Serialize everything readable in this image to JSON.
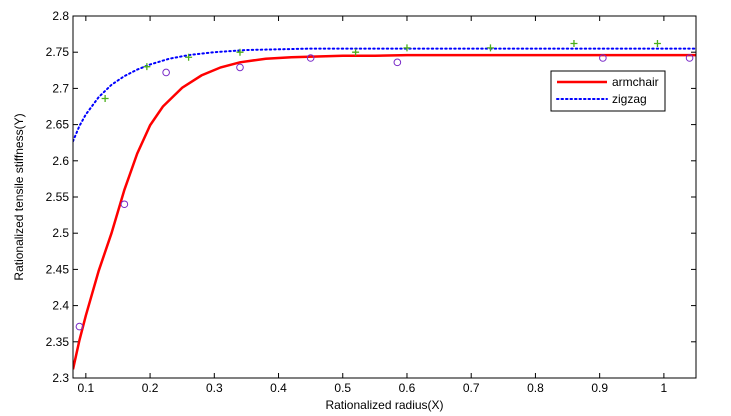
{
  "chart_data": {
    "type": "line",
    "title": "",
    "xlabel": "Rationalized radius(X)",
    "ylabel": "Rationalized tensile stiffness(Y)",
    "xlim": [
      0.08,
      1.05
    ],
    "ylim": [
      2.3,
      2.8
    ],
    "xticks": [
      0.1,
      0.2,
      0.3,
      0.4,
      0.5,
      0.6,
      0.7,
      0.8,
      0.9,
      1.0
    ],
    "xtick_labels": [
      "0.1",
      "0.2",
      "0.3",
      "0.4",
      "0.5",
      "0.6",
      "0.7",
      "0.8",
      "0.9",
      "1"
    ],
    "yticks": [
      2.3,
      2.35,
      2.4,
      2.45,
      2.5,
      2.55,
      2.6,
      2.65,
      2.7,
      2.75,
      2.8
    ],
    "ytick_labels": [
      "2.3",
      "2.35",
      "2.4",
      "2.45",
      "2.5",
      "2.55",
      "2.6",
      "2.65",
      "2.7",
      "2.75",
      "2.8"
    ],
    "grid": false,
    "legend_position": "top-right",
    "series": [
      {
        "name": "armchair",
        "style": "solid",
        "color": "#ff0000",
        "x": [
          0.08,
          0.09,
          0.1,
          0.12,
          0.14,
          0.16,
          0.18,
          0.2,
          0.22,
          0.25,
          0.28,
          0.31,
          0.34,
          0.38,
          0.42,
          0.46,
          0.5,
          0.55,
          0.6,
          0.7,
          0.8,
          0.9,
          1.0,
          1.05
        ],
        "y": [
          2.312,
          2.352,
          2.386,
          2.448,
          2.5,
          2.56,
          2.61,
          2.649,
          2.675,
          2.701,
          2.718,
          2.729,
          2.736,
          2.741,
          2.743,
          2.744,
          2.745,
          2.745,
          2.746,
          2.746,
          2.746,
          2.746,
          2.746,
          2.746
        ]
      },
      {
        "name": "zigzag",
        "style": "dotted",
        "color": "#0000ff",
        "x": [
          0.08,
          0.09,
          0.1,
          0.12,
          0.14,
          0.16,
          0.18,
          0.2,
          0.23,
          0.26,
          0.3,
          0.35,
          0.4,
          0.45,
          0.5,
          0.6,
          0.7,
          0.8,
          0.9,
          1.0,
          1.05
        ],
        "y": [
          2.627,
          2.648,
          2.664,
          2.688,
          2.705,
          2.717,
          2.726,
          2.733,
          2.741,
          2.746,
          2.75,
          2.753,
          2.754,
          2.755,
          2.755,
          2.755,
          2.755,
          2.755,
          2.755,
          2.755,
          2.755
        ]
      }
    ],
    "markers": [
      {
        "shape": "circle",
        "color": "#7a2cc8",
        "x": [
          0.09,
          0.16,
          0.225,
          0.34,
          0.45,
          0.585,
          0.905,
          1.04
        ],
        "y": [
          2.371,
          2.54,
          2.722,
          2.729,
          2.742,
          2.736,
          2.742,
          2.742
        ]
      },
      {
        "shape": "plus",
        "color": "#4caf1a",
        "x": [
          0.13,
          0.195,
          0.26,
          0.34,
          0.52,
          0.6,
          0.73,
          0.86,
          0.99
        ],
        "y": [
          2.686,
          2.73,
          2.743,
          2.75,
          2.75,
          2.756,
          2.756,
          2.762,
          2.762
        ]
      }
    ]
  }
}
